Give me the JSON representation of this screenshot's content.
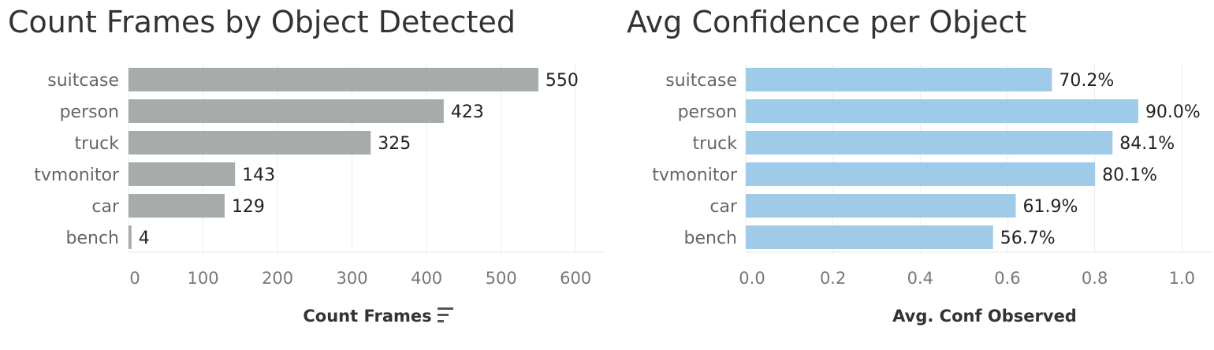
{
  "chart_data": [
    {
      "type": "bar",
      "orientation": "horizontal",
      "title": "Count Frames by Object Detected",
      "xlabel": "Count Frames",
      "sort_icon": "sort-descending-icon",
      "categories": [
        "suitcase",
        "person",
        "truck",
        "tvmonitor",
        "car",
        "bench"
      ],
      "values": [
        550,
        423,
        325,
        143,
        129,
        4
      ],
      "data_labels": [
        "550",
        "423",
        "325",
        "143",
        "129",
        "4"
      ],
      "xlim": [
        0,
        640
      ],
      "ticks": [
        0,
        100,
        200,
        300,
        400,
        500,
        600
      ],
      "tick_labels": [
        "0",
        "100",
        "200",
        "300",
        "400",
        "500",
        "600"
      ],
      "grid": true,
      "color": "#a7abab"
    },
    {
      "type": "bar",
      "orientation": "horizontal",
      "title": "Avg Confidence per Object",
      "xlabel": "Avg. Conf Observed",
      "categories": [
        "suitcase",
        "person",
        "truck",
        "tvmonitor",
        "car",
        "bench"
      ],
      "values": [
        0.702,
        0.9,
        0.841,
        0.801,
        0.619,
        0.567
      ],
      "data_labels": [
        "70.2%",
        "90.0%",
        "84.1%",
        "80.1%",
        "61.9%",
        "56.7%"
      ],
      "xlim": [
        0,
        1.07
      ],
      "ticks": [
        0,
        0.2,
        0.4,
        0.6,
        0.8,
        1.0
      ],
      "tick_labels": [
        "0.0",
        "0.2",
        "0.4",
        "0.6",
        "0.8",
        "1.0"
      ],
      "grid": true,
      "color": "#9fcae8"
    }
  ]
}
